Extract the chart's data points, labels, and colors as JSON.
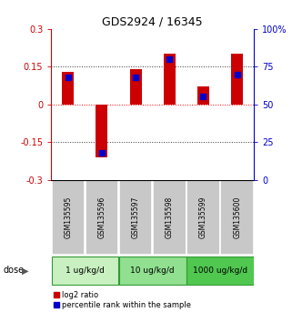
{
  "title": "GDS2924 / 16345",
  "samples": [
    "GSM135595",
    "GSM135596",
    "GSM135597",
    "GSM135598",
    "GSM135599",
    "GSM135600"
  ],
  "log2_ratio": [
    0.13,
    -0.21,
    0.14,
    0.2,
    0.07,
    0.2
  ],
  "percentile_rank": [
    68,
    18,
    68,
    80,
    55,
    70
  ],
  "ylim_left": [
    -0.3,
    0.3
  ],
  "ylim_right": [
    0,
    100
  ],
  "yticks_left": [
    -0.3,
    -0.15,
    0,
    0.15,
    0.3
  ],
  "ytick_labels_left": [
    "-0.3",
    "-0.15",
    "0",
    "0.15",
    "0.3"
  ],
  "yticks_right": [
    0,
    25,
    50,
    75,
    100
  ],
  "ytick_labels_right": [
    "0",
    "25",
    "50",
    "75",
    "100%"
  ],
  "dose_groups": [
    {
      "label": "1 ug/kg/d",
      "start": 0,
      "end": 2,
      "color": "#c8f0c0"
    },
    {
      "label": "10 ug/kg/d",
      "start": 2,
      "end": 4,
      "color": "#90e090"
    },
    {
      "label": "1000 ug/kg/d",
      "start": 4,
      "end": 6,
      "color": "#50c850"
    }
  ],
  "bar_color_red": "#cc0000",
  "bar_color_blue": "#0000cc",
  "sample_bg_color": "#c8c8c8",
  "bar_width": 0.35,
  "blue_square_size": 25,
  "legend_red_label": "log2 ratio",
  "legend_blue_label": "percentile rank within the sample",
  "dose_label": "dose",
  "left_axis_color": "#cc0000",
  "right_axis_color": "#0000cc",
  "grid_color": "#333333",
  "dose_border_color": "#339933"
}
